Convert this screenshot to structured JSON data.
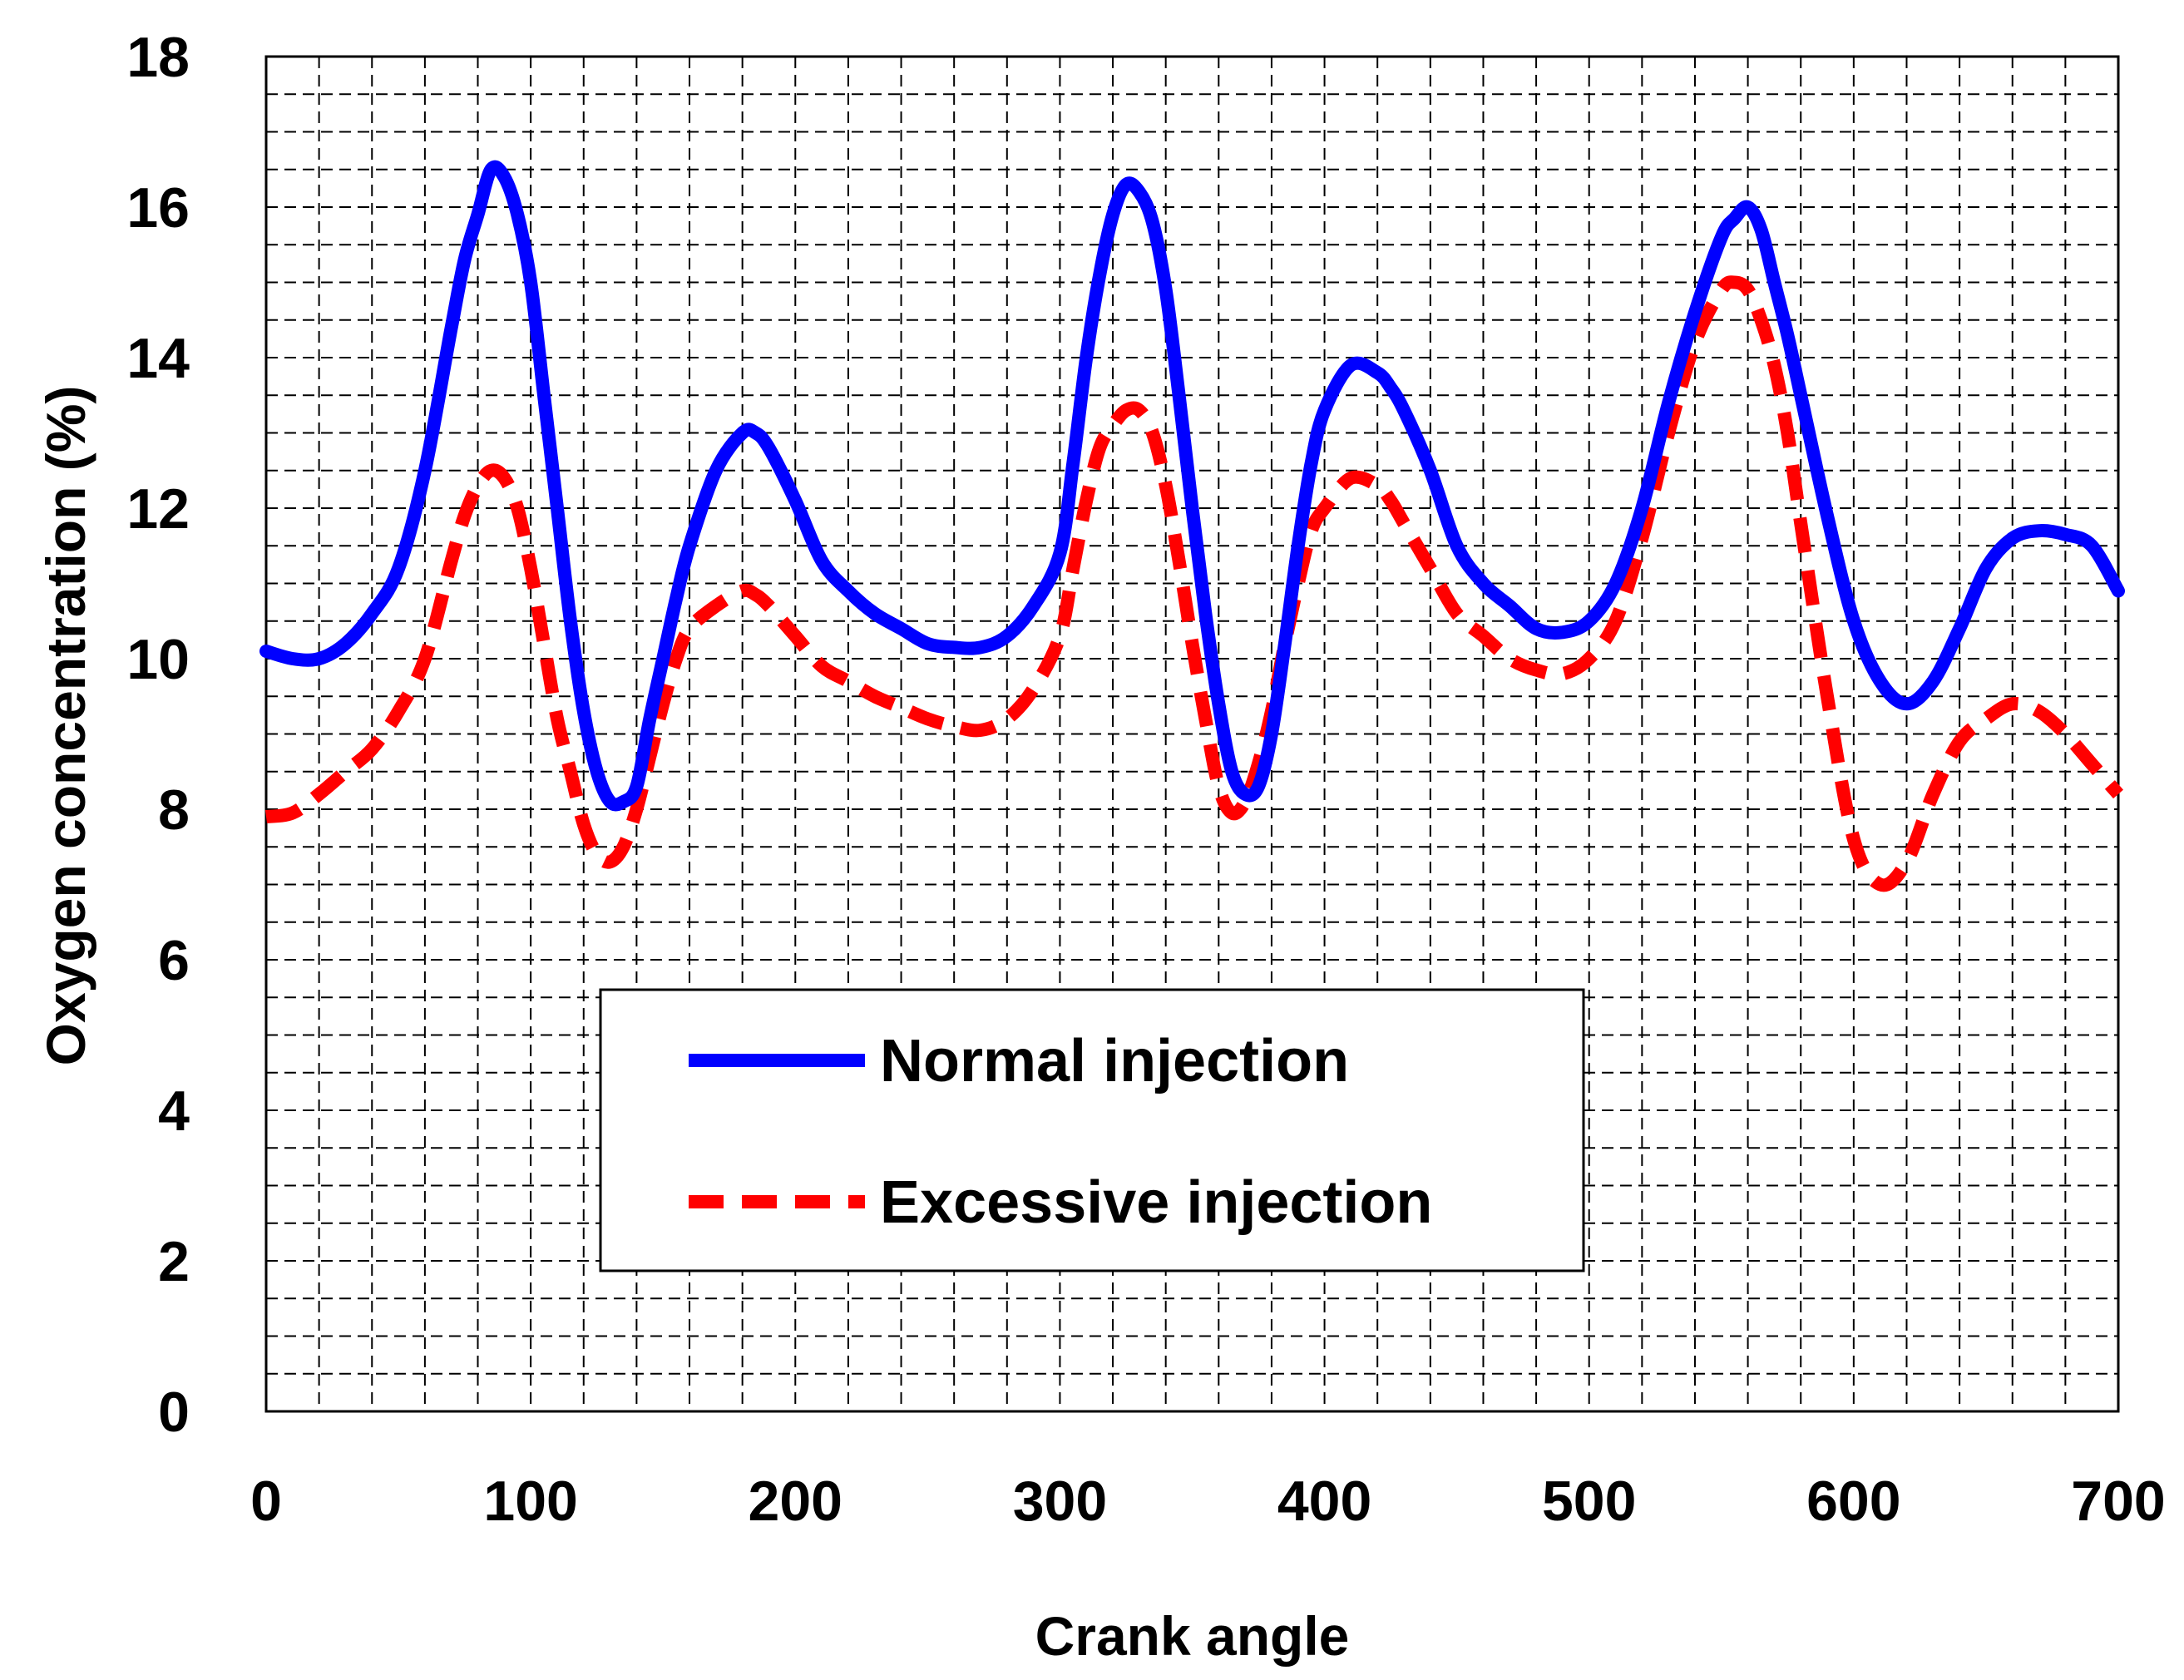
{
  "chart_data": {
    "type": "line",
    "title": "",
    "xlabel": "Crank angle",
    "ylabel": "Oxygen concentration (%)",
    "xlim": [
      0,
      700
    ],
    "ylim": [
      0,
      18
    ],
    "xticks": [
      0,
      100,
      200,
      300,
      400,
      500,
      600,
      700
    ],
    "yticks": [
      0,
      2,
      4,
      6,
      8,
      10,
      12,
      14,
      16,
      18
    ],
    "grid": true,
    "grid_style": "dashed",
    "legend_position": "center-bottom",
    "series": [
      {
        "name": "Normal injection",
        "color": "#0000FF",
        "line_style": "solid",
        "x": [
          0,
          10,
          20,
          30,
          40,
          50,
          60,
          70,
          75,
          80,
          85,
          90,
          95,
          100,
          105,
          110,
          115,
          120,
          125,
          130,
          135,
          140,
          145,
          150,
          155,
          160,
          170,
          180,
          185,
          190,
          200,
          210,
          220,
          230,
          240,
          250,
          260,
          270,
          280,
          290,
          300,
          305,
          310,
          315,
          320,
          325,
          330,
          335,
          340,
          345,
          350,
          355,
          360,
          365,
          370,
          375,
          380,
          385,
          390,
          395,
          400,
          410,
          420,
          425,
          430,
          440,
          450,
          460,
          470,
          480,
          490,
          500,
          510,
          520,
          530,
          540,
          550,
          555,
          560,
          565,
          570,
          575,
          580,
          590,
          600,
          610,
          620,
          630,
          640,
          650,
          660,
          670,
          680,
          690,
          700
        ],
        "y": [
          10.1,
          10.0,
          10.0,
          10.2,
          10.6,
          11.2,
          12.5,
          14.4,
          15.3,
          15.9,
          16.5,
          16.4,
          15.9,
          15.0,
          13.5,
          12.0,
          10.5,
          9.3,
          8.5,
          8.1,
          8.1,
          8.3,
          9.2,
          10.0,
          10.8,
          11.5,
          12.5,
          13.0,
          13.0,
          12.8,
          12.1,
          11.3,
          10.9,
          10.6,
          10.4,
          10.2,
          10.15,
          10.15,
          10.3,
          10.7,
          11.4,
          12.6,
          14.0,
          15.1,
          15.9,
          16.3,
          16.2,
          15.8,
          14.9,
          13.5,
          12.0,
          10.6,
          9.4,
          8.5,
          8.2,
          8.3,
          9.0,
          10.2,
          11.5,
          12.6,
          13.3,
          13.9,
          13.8,
          13.6,
          13.3,
          12.5,
          11.5,
          11.0,
          10.7,
          10.4,
          10.35,
          10.5,
          11.0,
          12.0,
          13.4,
          14.6,
          15.6,
          15.85,
          16.0,
          15.7,
          15.0,
          14.3,
          13.5,
          11.9,
          10.5,
          9.7,
          9.4,
          9.7,
          10.4,
          11.2,
          11.6,
          11.7,
          11.65,
          11.5,
          10.9
        ]
      },
      {
        "name": "Excessive injection",
        "color": "#FF0000",
        "line_style": "dashed",
        "x": [
          0,
          10,
          20,
          30,
          40,
          50,
          60,
          70,
          75,
          80,
          85,
          90,
          95,
          100,
          105,
          110,
          115,
          120,
          125,
          130,
          135,
          140,
          145,
          150,
          155,
          160,
          170,
          180,
          185,
          190,
          200,
          210,
          220,
          230,
          240,
          250,
          260,
          270,
          280,
          290,
          300,
          305,
          310,
          315,
          320,
          325,
          330,
          335,
          340,
          345,
          350,
          355,
          360,
          365,
          370,
          375,
          380,
          385,
          390,
          395,
          400,
          410,
          420,
          425,
          430,
          440,
          450,
          460,
          470,
          480,
          490,
          500,
          510,
          520,
          530,
          540,
          550,
          555,
          560,
          565,
          570,
          575,
          580,
          590,
          600,
          610,
          620,
          630,
          640,
          650,
          660,
          670,
          680,
          690,
          700
        ],
        "y": [
          7.9,
          7.95,
          8.2,
          8.5,
          8.8,
          9.3,
          10.0,
          11.3,
          11.9,
          12.3,
          12.5,
          12.4,
          12.0,
          11.2,
          10.2,
          9.2,
          8.5,
          7.8,
          7.4,
          7.3,
          7.5,
          8.0,
          8.7,
          9.4,
          10.0,
          10.4,
          10.7,
          10.9,
          10.85,
          10.7,
          10.3,
          9.9,
          9.7,
          9.5,
          9.35,
          9.2,
          9.1,
          9.05,
          9.2,
          9.6,
          10.3,
          11.2,
          12.1,
          12.8,
          13.1,
          13.3,
          13.3,
          13.0,
          12.3,
          11.3,
          10.2,
          9.2,
          8.3,
          7.95,
          8.1,
          8.6,
          9.3,
          10.2,
          11.0,
          11.7,
          12.0,
          12.4,
          12.3,
          12.1,
          11.8,
          11.2,
          10.6,
          10.3,
          10.0,
          9.85,
          9.8,
          10.0,
          10.5,
          11.6,
          13.0,
          14.2,
          14.9,
          15.0,
          14.9,
          14.5,
          13.9,
          13.0,
          11.8,
          9.5,
          7.6,
          7.0,
          7.3,
          8.2,
          8.9,
          9.2,
          9.4,
          9.3,
          9.0,
          8.6,
          8.2
        ]
      }
    ]
  }
}
